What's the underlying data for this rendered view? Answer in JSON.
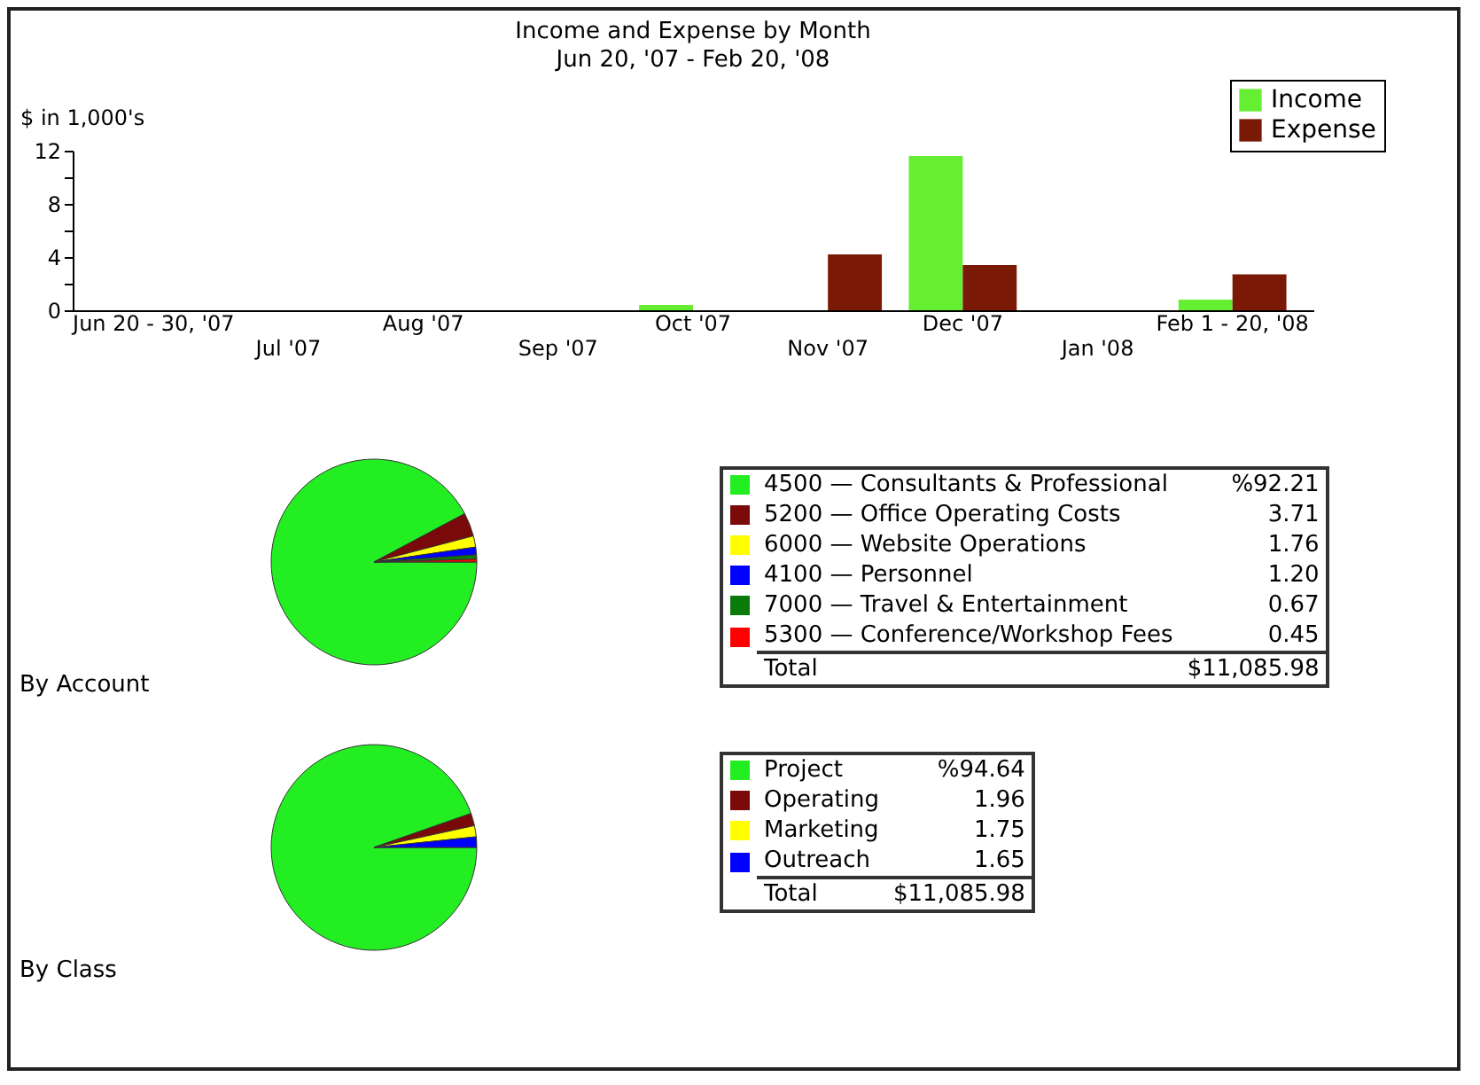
{
  "chart_data": [
    {
      "type": "bar",
      "title": "Income and Expense by Month",
      "subtitle": "Jun 20, '07 - Feb 20, '08",
      "ylabel": "$ in 1,000's",
      "categories": [
        "Jun 20 - 30, '07",
        "Jul '07",
        "Aug '07",
        "Sep '07",
        "Oct '07",
        "Nov '07",
        "Dec '07",
        "Jan '08",
        "Feb 1 - 20, '08"
      ],
      "series": [
        {
          "name": "Income",
          "color": "#66ee33",
          "values": [
            0,
            0,
            0,
            0,
            0.4,
            0,
            11.6,
            0,
            0.8
          ]
        },
        {
          "name": "Expense",
          "color": "#7a1a06",
          "values": [
            0,
            0,
            0,
            0,
            0,
            4.2,
            3.4,
            0,
            2.7
          ]
        }
      ],
      "ylim": [
        0,
        12
      ],
      "yticks": [
        0,
        {
          "value": 2,
          "label": null
        },
        4,
        {
          "value": 6,
          "label": null
        },
        8,
        {
          "value": 10,
          "label": null
        },
        12
      ],
      "grid": false,
      "legend": "top right"
    },
    {
      "type": "pie",
      "title": "By Account",
      "categories": [
        "4500 — Consultants & Professional",
        "5200 — Office Operating Costs",
        "6000 — Website Operations",
        "4100 — Personnel",
        "7000 — Travel & Entertainment",
        "5300 — Conference/Workshop Fees"
      ],
      "values": [
        92.21,
        3.71,
        1.76,
        1.2,
        0.67,
        0.45
      ],
      "value_labels": [
        "%92.21",
        "3.71",
        "1.76",
        "1.20",
        "0.67",
        "0.45"
      ],
      "colors": [
        "#22ee22",
        "#7a0a0a",
        "#ffff00",
        "#0000ff",
        "#0a7a0a",
        "#ff0000"
      ],
      "legend": "right",
      "annotations": [
        "Total",
        "$11,085.98"
      ]
    },
    {
      "type": "pie",
      "title": "By Class",
      "categories": [
        "Project",
        "Operating",
        "Marketing",
        "Outreach"
      ],
      "values": [
        94.64,
        1.96,
        1.75,
        1.65
      ],
      "value_labels": [
        "%94.64",
        "1.96",
        "1.75",
        "1.65"
      ],
      "colors": [
        "#22ee22",
        "#7a0a0a",
        "#ffff00",
        "#0000ff"
      ],
      "legend": "right",
      "annotations": [
        "Total",
        "$11,085.98"
      ]
    }
  ]
}
